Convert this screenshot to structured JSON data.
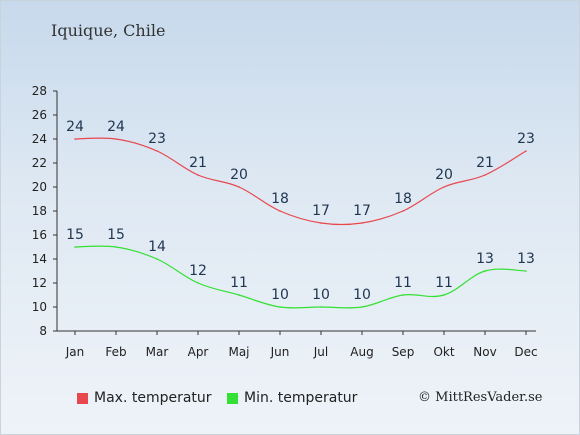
{
  "title": "Iquique, Chile",
  "chart_data": {
    "type": "line",
    "categories": [
      "Jan",
      "Feb",
      "Mar",
      "Apr",
      "Maj",
      "Jun",
      "Jul",
      "Aug",
      "Sep",
      "Okt",
      "Nov",
      "Dec"
    ],
    "series": [
      {
        "name": "Max. temperatur",
        "color": "#e8474e",
        "values": [
          24,
          24,
          23,
          21,
          20,
          18,
          17,
          17,
          18,
          20,
          21,
          23
        ]
      },
      {
        "name": "Min. temperatur",
        "color": "#33e033",
        "values": [
          15,
          15,
          14,
          12,
          11,
          10,
          10,
          10,
          11,
          11,
          13,
          13
        ]
      }
    ],
    "yticks": [
      8,
      10,
      12,
      14,
      16,
      18,
      20,
      22,
      24,
      26,
      28
    ],
    "ylim": [
      8,
      28
    ],
    "grid": false,
    "legend": "bottom"
  },
  "credit": "© MittResVader.se"
}
